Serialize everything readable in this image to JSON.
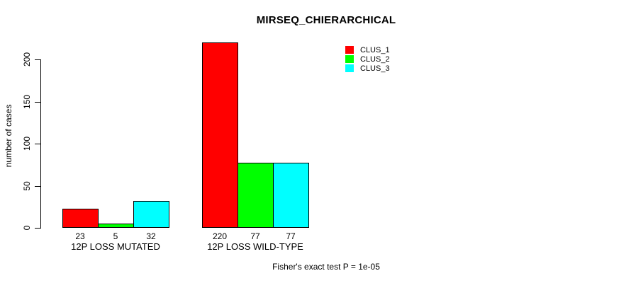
{
  "chart_data": {
    "type": "bar",
    "title": "MIRSEQ_CHIERARCHICAL",
    "ylabel": "number of cases",
    "xlabel": "",
    "categories": [
      "12P LOSS MUTATED",
      "12P LOSS WILD-TYPE"
    ],
    "series": [
      {
        "name": "CLUS_1",
        "color": "#ff0000",
        "values": [
          23,
          220
        ]
      },
      {
        "name": "CLUS_2",
        "color": "#00ff00",
        "values": [
          5,
          77
        ]
      },
      {
        "name": "CLUS_3",
        "color": "#00ffff",
        "values": [
          32,
          77
        ]
      }
    ],
    "yticks": [
      0,
      50,
      100,
      150,
      200
    ],
    "ylim": [
      0,
      220
    ],
    "grid": false,
    "legend_position": "top-right",
    "bar_border_color": "#000000",
    "annotation": "Fisher's exact test P = 1e-05"
  }
}
